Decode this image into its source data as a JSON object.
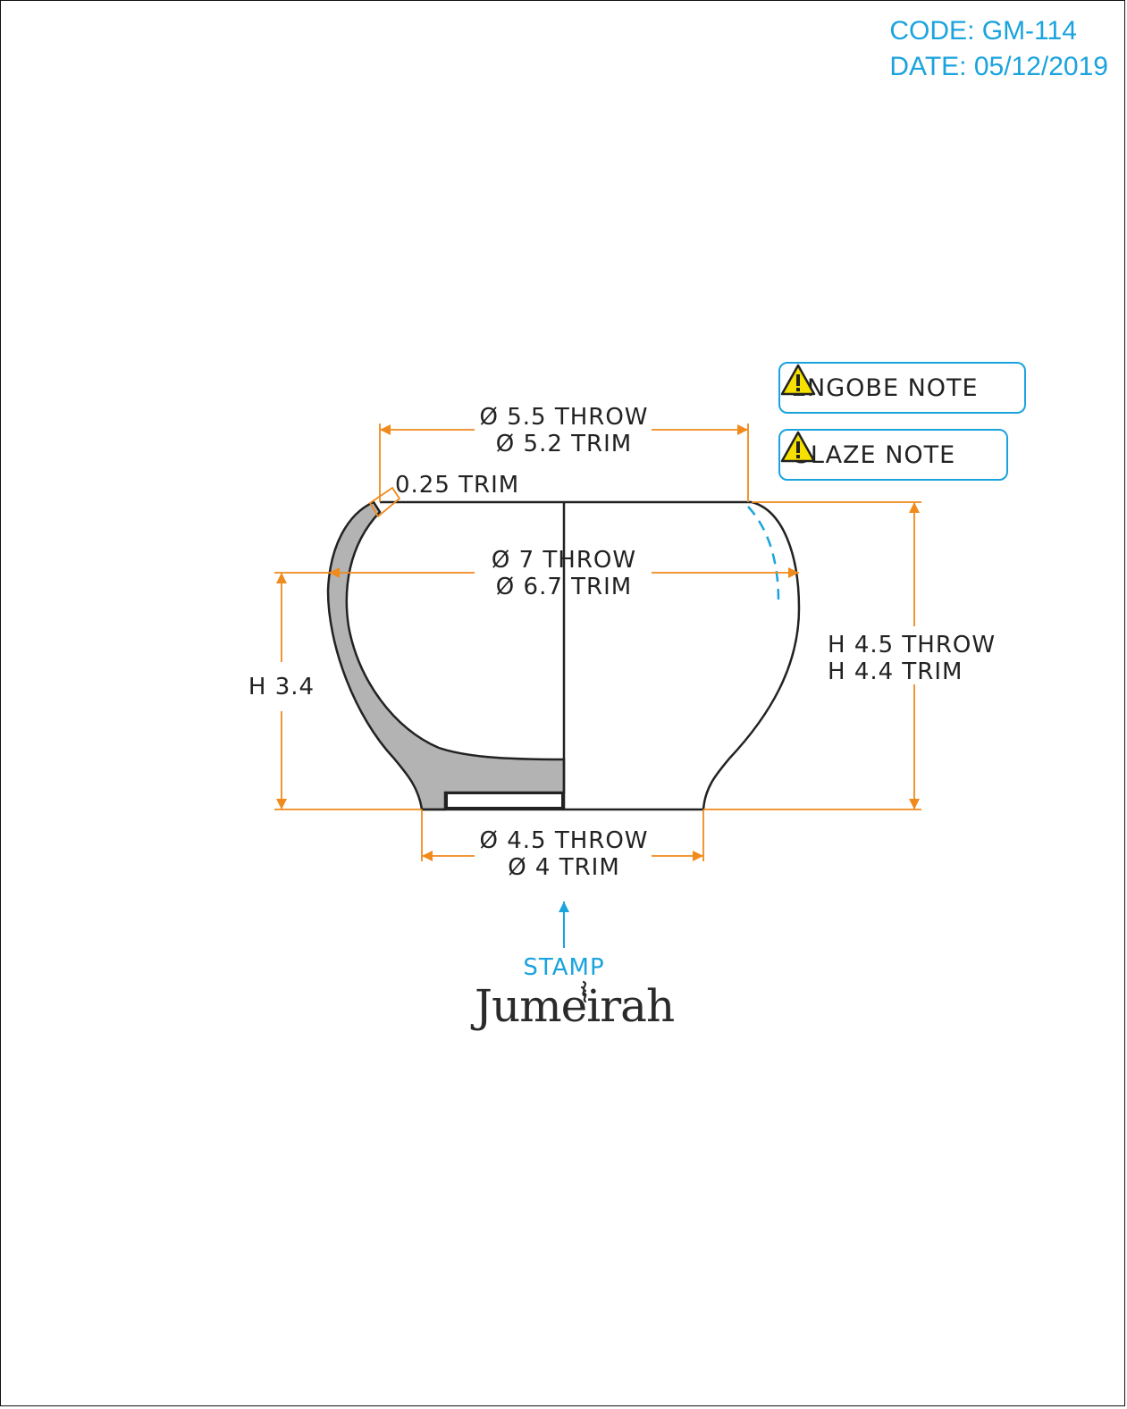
{
  "header": {
    "code": "CODE: GM-114",
    "date": "DATE: 05/12/2019"
  },
  "dimensions": {
    "rim_throw": "Ø 5.5 THROW",
    "rim_trim": "Ø 5.2 TRIM",
    "wall": "0.25 TRIM",
    "body_throw": "Ø 7 THROW",
    "body_trim": "Ø 6.7 TRIM",
    "inner_height": "H 3.4",
    "height_throw": "H 4.5 THROW",
    "height_trim": "H 4.4 TRIM",
    "foot_throw": "Ø 4.5 THROW",
    "foot_trim": "Ø 4 TRIM"
  },
  "notes": {
    "engobe": "ENGOBE NOTE",
    "glaze": "GLAZE NOTE"
  },
  "stamp": {
    "label": "STAMP",
    "brand": "Jumeirah"
  },
  "colors": {
    "dimension": "#f08a1c",
    "accent": "#1aa3dd",
    "section": "#b3b3b3",
    "outline": "#222222",
    "warning": "#f5e000"
  },
  "icons": [
    "warning-icon",
    "stamp-arrow-icon",
    "jumeirah-logo"
  ]
}
